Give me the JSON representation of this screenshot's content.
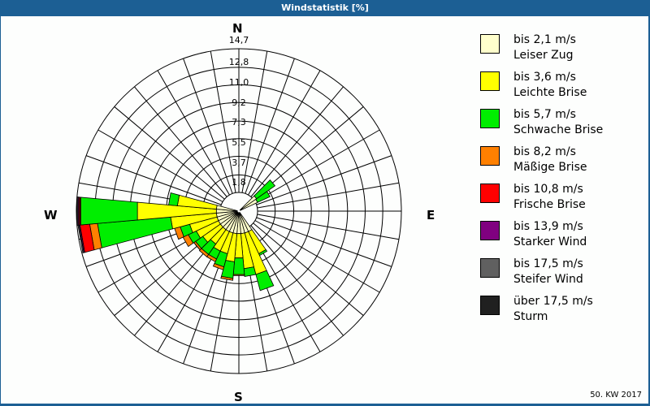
{
  "title": "Windstatistik [%]",
  "footer": "50. KW 2017",
  "compass": {
    "n": "N",
    "e": "E",
    "s": "S",
    "w": "W"
  },
  "ring_labels": [
    "1,8",
    "3,7",
    "5,5",
    "7,3",
    "9,2",
    "11,0",
    "12,8",
    "14,7"
  ],
  "legend": [
    {
      "range": "bis 2,1 m/s",
      "name": "Leiser Zug",
      "color": "#ffffcc"
    },
    {
      "range": "bis 3,6 m/s",
      "name": "Leichte Brise",
      "color": "#ffff00"
    },
    {
      "range": "bis 5,7 m/s",
      "name": "Schwache Brise",
      "color": "#00ee00"
    },
    {
      "range": "bis 8,2 m/s",
      "name": "Mäßige Brise",
      "color": "#ff8000"
    },
    {
      "range": "bis 10,8 m/s",
      "name": "Frische Brise",
      "color": "#ff0000"
    },
    {
      "range": "bis 13,9 m/s",
      "name": "Starker Wind",
      "color": "#800080"
    },
    {
      "range": "bis 17,5 m/s",
      "name": "Steifer Wind",
      "color": "#606060"
    },
    {
      "range": "über 17,5 m/s",
      "name": "Sturm",
      "color": "#202020"
    }
  ],
  "chart_data": {
    "type": "polar-stacked-bar (wind rose)",
    "title": "Windstatistik [%]",
    "subtitle": "50. KW 2017",
    "radial_axis": {
      "unit": "%",
      "ticks": [
        1.8,
        3.7,
        5.5,
        7.3,
        9.2,
        11.0,
        12.8,
        14.7
      ],
      "max": 14.7
    },
    "directions_deg_step": 10,
    "series_names": [
      "bis 2,1 m/s",
      "bis 3,6 m/s",
      "bis 5,7 m/s",
      "bis 8,2 m/s",
      "bis 10,8 m/s",
      "bis 13,9 m/s",
      "bis 17,5 m/s",
      "über 17,5 m/s"
    ],
    "sectors": [
      {
        "dir": 50,
        "cumulative": [
          0.3,
          0.3,
          2.6,
          2.6,
          2.6,
          2.6,
          2.6,
          2.6
        ]
      },
      {
        "dir": 60,
        "cumulative": [
          0.2,
          0.2,
          1.6,
          1.6,
          1.6,
          1.6,
          1.6,
          1.6
        ]
      },
      {
        "dir": 150,
        "cumulative": [
          0.4,
          2.9,
          3.1,
          3.1,
          3.1,
          3.1,
          3.1,
          3.1
        ]
      },
      {
        "dir": 160,
        "cumulative": [
          0.4,
          4.8,
          6.5,
          6.5,
          6.5,
          6.5,
          6.5,
          6.5
        ]
      },
      {
        "dir": 170,
        "cumulative": [
          0.4,
          4.0,
          4.8,
          4.8,
          4.8,
          4.8,
          4.8,
          4.8
        ]
      },
      {
        "dir": 180,
        "cumulative": [
          0.4,
          2.9,
          4.6,
          4.7,
          4.7,
          4.7,
          4.7,
          4.7
        ]
      },
      {
        "dir": 190,
        "cumulative": [
          0.4,
          3.3,
          5.0,
          5.2,
          5.2,
          5.2,
          5.2,
          5.2
        ]
      },
      {
        "dir": 200,
        "cumulative": [
          0.4,
          2.6,
          4.0,
          4.3,
          4.3,
          4.3,
          4.3,
          4.3
        ]
      },
      {
        "dir": 210,
        "cumulative": [
          0.4,
          2.6,
          3.5,
          3.8,
          3.8,
          3.8,
          3.8,
          3.8
        ]
      },
      {
        "dir": 220,
        "cumulative": [
          0.4,
          2.2,
          3.5,
          3.8,
          3.8,
          3.8,
          3.8,
          3.8
        ]
      },
      {
        "dir": 230,
        "cumulative": [
          0.4,
          2.6,
          3.5,
          3.7,
          3.7,
          3.7,
          3.7,
          3.7
        ]
      },
      {
        "dir": 240,
        "cumulative": [
          0.4,
          2.9,
          3.8,
          4.4,
          4.4,
          4.4,
          4.4,
          4.4
        ]
      },
      {
        "dir": 250,
        "cumulative": [
          0.4,
          3.3,
          4.3,
          4.9,
          4.9,
          4.9,
          4.9,
          4.9
        ]
      },
      {
        "dir": 260,
        "cumulative": [
          0.4,
          5.1,
          12.6,
          13.4,
          14.4,
          14.5,
          14.6,
          14.6
        ]
      },
      {
        "dir": 270,
        "cumulative": [
          0.4,
          8.5,
          14.3,
          14.4,
          14.5,
          14.6,
          14.7,
          14.7
        ]
      },
      {
        "dir": 280,
        "cumulative": [
          0.4,
          4.4,
          5.3,
          5.3,
          5.3,
          5.3,
          5.3,
          5.3
        ]
      }
    ]
  }
}
